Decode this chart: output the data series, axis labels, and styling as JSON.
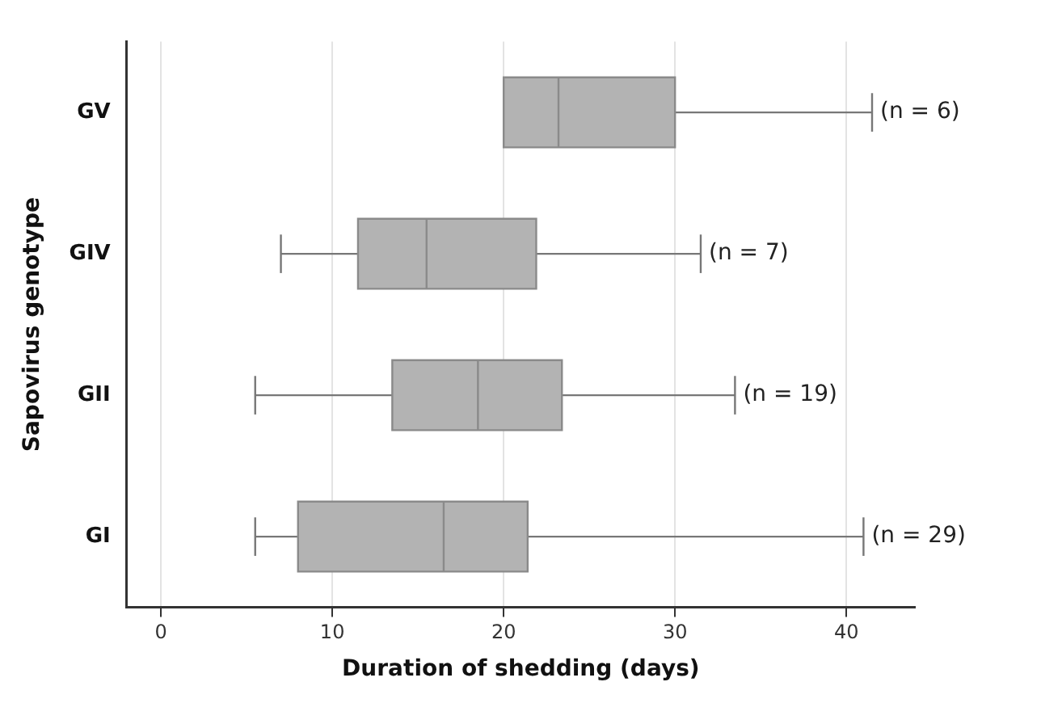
{
  "chart_data": {
    "type": "box",
    "orientation": "horizontal",
    "xlabel": "Duration of shedding (days)",
    "ylabel": "Sapovirus genotype",
    "categories": [
      "GV",
      "GIV",
      "GII",
      "GI"
    ],
    "series": [
      {
        "color": "#b3b3b3",
        "boxes": [
          {
            "low": 20,
            "q1": 20,
            "median": 23.2,
            "q3": 30,
            "high": 41.5
          },
          {
            "low": 7,
            "q1": 11.5,
            "median": 15.5,
            "q3": 21.9,
            "high": 31.5
          },
          {
            "low": 5.5,
            "q1": 13.5,
            "median": 18.5,
            "q3": 23.4,
            "high": 33.5
          },
          {
            "low": 5.5,
            "q1": 8,
            "median": 16.5,
            "q3": 21.4,
            "high": 41
          }
        ]
      }
    ],
    "xlim": [
      -2,
      44
    ],
    "xticks": [
      0,
      10,
      20,
      30,
      40
    ],
    "grid": "x",
    "legend": false,
    "annotations": [
      {
        "text": "(n = 6)",
        "x": 41.5,
        "y": "GV"
      },
      {
        "text": "(n = 7)",
        "x": 31.5,
        "y": "GIV"
      },
      {
        "text": "(n = 19)",
        "x": 33.5,
        "y": "GII"
      },
      {
        "text": "(n = 29)",
        "x": 41,
        "y": "GI"
      }
    ]
  }
}
